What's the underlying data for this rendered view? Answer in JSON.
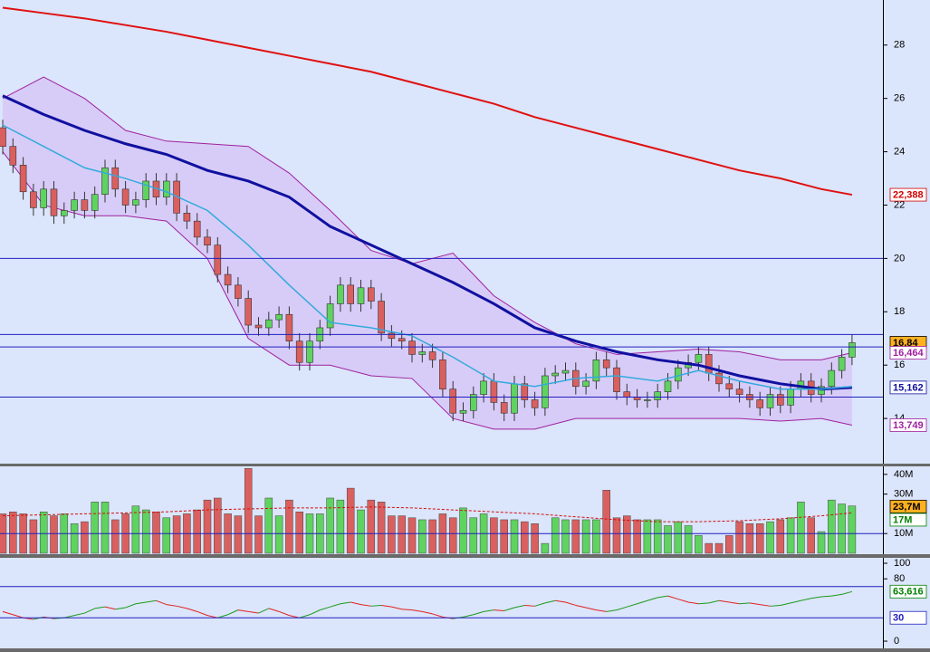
{
  "chart_data": [
    {
      "type": "candlestick",
      "open": [
        24.9,
        24.2,
        23.5,
        22.5,
        21.9,
        22.6,
        21.6,
        21.8,
        22.2,
        21.8,
        22.4,
        23.4,
        22.6,
        22.0,
        22.2,
        22.9,
        22.3,
        22.9,
        21.7,
        21.4,
        20.8,
        20.5,
        19.4,
        19.0,
        18.5,
        17.5,
        17.4,
        17.7,
        17.9,
        16.9,
        16.1,
        16.9,
        17.4,
        18.3,
        19.0,
        18.3,
        18.9,
        18.4,
        17.2,
        17.0,
        16.9,
        16.4,
        16.5,
        16.2,
        15.1,
        14.2,
        14.3,
        14.9,
        15.4,
        14.6,
        14.2,
        15.3,
        14.7,
        14.4,
        15.6,
        15.7,
        15.8,
        15.2,
        15.4,
        16.2,
        15.9,
        15.0,
        14.8,
        14.7,
        14.7,
        15.0,
        15.4,
        15.9,
        16.1,
        16.4,
        15.7,
        15.3,
        15.1,
        14.9,
        14.7,
        14.4,
        14.9,
        14.5,
        15.1,
        15.4,
        14.9,
        15.2,
        15.8,
        16.3
      ],
      "high": [
        25.2,
        24.5,
        23.8,
        22.8,
        22.9,
        22.9,
        22.1,
        22.5,
        22.5,
        22.7,
        23.7,
        23.7,
        22.9,
        22.5,
        23.2,
        23.2,
        23.2,
        23.2,
        22.0,
        21.7,
        21.1,
        20.8,
        19.7,
        19.3,
        18.8,
        17.8,
        18.0,
        18.2,
        18.2,
        17.2,
        17.2,
        17.7,
        18.6,
        19.3,
        19.3,
        19.2,
        19.2,
        18.7,
        17.5,
        17.3,
        17.2,
        16.8,
        16.8,
        16.5,
        15.4,
        14.6,
        15.2,
        15.7,
        15.7,
        14.9,
        15.6,
        15.6,
        15.0,
        15.9,
        16.0,
        16.1,
        16.1,
        15.7,
        16.5,
        16.5,
        16.2,
        15.3,
        15.1,
        15.0,
        15.3,
        15.7,
        16.2,
        16.4,
        16.7,
        16.7,
        16.0,
        15.6,
        15.4,
        15.2,
        15.0,
        15.2,
        15.2,
        15.4,
        15.7,
        15.7,
        15.5,
        16.1,
        16.6,
        17.14
      ],
      "low": [
        23.9,
        23.2,
        22.2,
        21.6,
        21.6,
        21.3,
        21.3,
        21.5,
        21.5,
        21.5,
        22.1,
        22.3,
        21.7,
        21.7,
        21.9,
        22.0,
        22.0,
        21.4,
        21.1,
        20.5,
        20.2,
        19.1,
        18.7,
        18.2,
        17.2,
        17.1,
        17.1,
        17.4,
        16.6,
        15.8,
        15.8,
        16.6,
        17.1,
        18.0,
        18.0,
        18.0,
        18.1,
        16.9,
        16.7,
        16.6,
        16.1,
        16.1,
        15.9,
        14.8,
        13.9,
        13.9,
        14.0,
        14.6,
        14.3,
        13.9,
        13.9,
        14.4,
        14.1,
        14.1,
        15.3,
        15.4,
        14.9,
        14.9,
        15.1,
        15.6,
        14.7,
        14.5,
        14.4,
        14.4,
        14.4,
        14.7,
        15.1,
        15.6,
        15.8,
        15.4,
        15.0,
        14.8,
        14.6,
        14.4,
        14.1,
        14.1,
        14.2,
        14.2,
        14.8,
        14.6,
        14.6,
        14.9,
        15.5,
        16.0
      ],
      "close": [
        24.2,
        23.5,
        22.5,
        21.9,
        22.6,
        21.6,
        21.8,
        22.2,
        21.8,
        22.4,
        23.4,
        22.6,
        22.0,
        22.2,
        22.9,
        22.3,
        22.9,
        21.7,
        21.4,
        20.8,
        20.5,
        19.4,
        19.0,
        18.5,
        17.5,
        17.4,
        17.7,
        17.9,
        16.9,
        16.1,
        16.9,
        17.4,
        18.3,
        19.0,
        18.3,
        18.9,
        18.4,
        17.2,
        17.0,
        16.9,
        16.4,
        16.5,
        16.2,
        15.1,
        14.2,
        14.3,
        14.9,
        15.4,
        14.6,
        14.2,
        15.3,
        14.7,
        14.4,
        15.6,
        15.7,
        15.8,
        15.2,
        15.4,
        16.2,
        15.9,
        15.0,
        14.8,
        14.7,
        14.7,
        15.0,
        15.4,
        15.9,
        16.1,
        16.4,
        15.7,
        15.3,
        15.1,
        14.9,
        14.7,
        14.4,
        14.9,
        14.5,
        15.1,
        15.4,
        14.9,
        15.2,
        15.8,
        16.3,
        16.84
      ],
      "up_color": "#5fd35f",
      "down_color": "#d9605f",
      "ylim": [
        12.34,
        29.69
      ],
      "yticks": [
        14,
        16,
        18,
        20,
        22,
        24,
        26,
        28
      ],
      "overlays": {
        "x": [
          0,
          4,
          8,
          12,
          16,
          20,
          24,
          28,
          32,
          36,
          40,
          44,
          48,
          52,
          56,
          60,
          64,
          68,
          72,
          76,
          80,
          83
        ],
        "band": {
          "color": "#a020a0",
          "fill": "#d6c8f6",
          "upper": [
            26.0,
            26.8,
            26.0,
            24.8,
            24.4,
            24.3,
            24.2,
            23.2,
            21.8,
            20.3,
            19.8,
            20.2,
            18.6,
            17.6,
            16.8,
            16.4,
            16.5,
            16.6,
            16.5,
            16.2,
            16.2,
            16.464
          ],
          "lower": [
            24.0,
            22.0,
            21.6,
            21.6,
            21.4,
            20.0,
            17.0,
            16.0,
            16.0,
            15.6,
            15.5,
            14.0,
            13.6,
            13.6,
            14.0,
            14.0,
            14.0,
            14.0,
            14.0,
            13.9,
            14.0,
            13.749
          ]
        },
        "series": [
          {
            "color": "#e01010",
            "width": 2,
            "values": [
              29.4,
              29.2,
              29.0,
              28.75,
              28.5,
              28.2,
              27.9,
              27.6,
              27.3,
              27.0,
              26.6,
              26.2,
              25.8,
              25.3,
              24.9,
              24.5,
              24.1,
              23.7,
              23.3,
              23.0,
              22.6,
              22.388
            ]
          },
          {
            "color": "#1010a0",
            "width": 3,
            "values": [
              26.1,
              25.4,
              24.8,
              24.3,
              23.9,
              23.3,
              22.9,
              22.3,
              21.2,
              20.5,
              19.8,
              19.1,
              18.3,
              17.4,
              16.9,
              16.5,
              16.2,
              16.0,
              15.6,
              15.3,
              15.1,
              15.162
            ]
          },
          {
            "color": "#33aadd",
            "width": 1.5,
            "values": [
              25.0,
              24.2,
              23.4,
              23.0,
              22.5,
              21.8,
              20.5,
              19.0,
              17.6,
              17.4,
              17.1,
              16.3,
              15.4,
              15.2,
              15.5,
              15.6,
              15.4,
              15.8,
              15.4,
              15.1,
              15.1,
              15.2
            ]
          }
        ]
      },
      "hlines": {
        "color": "#2020c0",
        "values": [
          20,
          17.15,
          16.68,
          14.8
        ]
      },
      "price_labels": [
        {
          "value": 22.388,
          "label": "22,388",
          "color": "#d00000",
          "bg": "#ffffff"
        },
        {
          "value": 16.84,
          "label": "16,84",
          "color": "#000000",
          "bg": "#ffb020"
        },
        {
          "value": 16.464,
          "label": "16,464",
          "color": "#a020a0",
          "bg": "#ffffff"
        },
        {
          "value": 15.162,
          "label": "15,162",
          "color": "#1010a0",
          "bg": "#ffffff"
        },
        {
          "value": 13.749,
          "label": "13,749",
          "color": "#a020a0",
          "bg": "#ffffff"
        }
      ]
    },
    {
      "type": "bar",
      "values": [
        20,
        21,
        20,
        17,
        21,
        19,
        20,
        15,
        16,
        26,
        26,
        17,
        20,
        24,
        22,
        21,
        18,
        19,
        20,
        22,
        27,
        28,
        20,
        19,
        43,
        19,
        28,
        19,
        27,
        21,
        20,
        20,
        28,
        27,
        33,
        22,
        27,
        26,
        19,
        19,
        18,
        17,
        17,
        20,
        18,
        23,
        18,
        20,
        18,
        17,
        17,
        16,
        15,
        5,
        18,
        17,
        17,
        17,
        17,
        32,
        18,
        19,
        17,
        17,
        17,
        14,
        16,
        14,
        9,
        5,
        5,
        9,
        16,
        15,
        15,
        16,
        17,
        18,
        26,
        18,
        11,
        27,
        25,
        24
      ],
      "ylim": [
        0,
        43.6
      ],
      "yticks": [
        {
          "value": 10,
          "label": "10M"
        },
        {
          "value": 30,
          "label": "30M"
        },
        {
          "value": 40,
          "label": "40M"
        }
      ],
      "ma": {
        "color": "#d01010",
        "x": [
          0,
          4,
          8,
          12,
          16,
          20,
          24,
          28,
          32,
          36,
          40,
          44,
          48,
          52,
          56,
          60,
          64,
          68,
          72,
          76,
          80,
          83
        ],
        "values": [
          19,
          19.5,
          20,
          20.5,
          21,
          22,
          22.5,
          23,
          23,
          23.5,
          23,
          22,
          21,
          20,
          18.5,
          17,
          16,
          16,
          16.5,
          17.5,
          19,
          20.5
        ]
      },
      "hlines": {
        "color": "#2020c0",
        "values": [
          10
        ]
      },
      "price_labels": [
        {
          "value": 23.7,
          "label": "23,7M",
          "color": "#000000",
          "bg": "#ffb020"
        },
        {
          "value": 17,
          "label": "17M",
          "color": "#008000",
          "bg": "#ffffff"
        }
      ]
    },
    {
      "type": "line",
      "values": [
        38,
        34,
        30,
        28,
        31,
        29,
        30,
        33,
        36,
        42,
        44,
        41,
        43,
        48,
        50,
        52,
        47,
        45,
        42,
        38,
        33,
        30,
        34,
        40,
        38,
        36,
        42,
        38,
        33,
        30,
        34,
        40,
        44,
        48,
        50,
        47,
        45,
        46,
        44,
        41,
        40,
        38,
        35,
        31,
        29,
        31,
        34,
        38,
        40,
        39,
        43,
        46,
        45,
        49,
        52,
        50,
        46,
        43,
        40,
        38,
        40,
        44,
        48,
        52,
        56,
        58,
        54,
        50,
        48,
        49,
        52,
        50,
        48,
        49,
        47,
        45,
        46,
        49,
        52,
        55,
        57,
        58,
        60,
        63.616
      ],
      "up_color": "#1a9a1a",
      "down_color": "#e02020",
      "ylim": [
        -8.1,
        105.8
      ],
      "yticks": [
        0,
        80,
        100
      ],
      "hlines": {
        "color": "#2020c0",
        "values": [
          70,
          30
        ]
      },
      "price_labels": [
        {
          "value": 63.616,
          "label": "63,616",
          "color": "#008000",
          "bg": "#ffffff"
        },
        {
          "value": 30,
          "label": "30",
          "color": "#2020c0",
          "bg": "#ffffff"
        }
      ]
    }
  ]
}
